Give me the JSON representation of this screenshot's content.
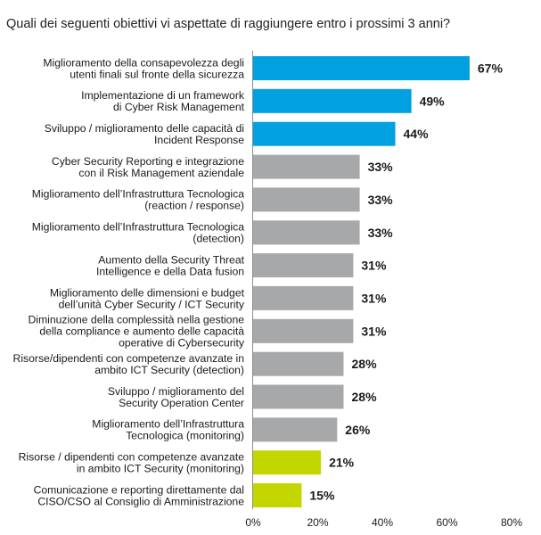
{
  "title": "Quali dei seguenti obiettivi vi aspettate di raggiungere entro i prossimi 3 anni?",
  "colors": {
    "top": "#00a0e1",
    "middle": "#a7a8aa",
    "bottom": "#c4d600"
  },
  "chart_data": {
    "type": "bar",
    "orientation": "horizontal",
    "title": "Quali dei seguenti obiettivi vi aspettate di raggiungere entro i prossimi 3 anni?",
    "xlabel": "",
    "ylabel": "",
    "xlim": [
      0,
      80
    ],
    "grid": false,
    "x_ticks": [
      "0%",
      "20%",
      "40%",
      "60%",
      "80%"
    ],
    "categories": [
      [
        "Miglioramento della consapevolezza degli",
        "utenti finali sul fronte della sicurezza"
      ],
      [
        "Implementazione di un framework",
        "di Cyber Risk Management"
      ],
      [
        "Sviluppo / miglioramento delle capacità di",
        "Incident Response"
      ],
      [
        "Cyber Security Reporting e integrazione",
        "con il Risk Management aziendale"
      ],
      [
        "Miglioramento dell’Infrastruttura Tecnologica",
        "(reaction / response)"
      ],
      [
        "Miglioramento dell’Infrastruttura Tecnologica",
        "(detection)"
      ],
      [
        "Aumento della Security Threat",
        "Intelligence e della Data fusion"
      ],
      [
        "Miglioramento delle dimensioni e budget",
        "dell’unità Cyber Security / ICT Security"
      ],
      [
        "Diminuzione della complessità nella gestione",
        "della compliance e aumento delle capacità",
        "operative di Cybersecurity"
      ],
      [
        "Risorse/dipendenti con competenze avanzate in",
        "ambito ICT Security (detection)"
      ],
      [
        "Sviluppo / miglioramento del",
        "Security Operation Center"
      ],
      [
        "Miglioramento dell’Infrastruttura",
        "Tecnologica (monitoring)"
      ],
      [
        "Risorse / dipendenti con competenze avanzate",
        "in ambito ICT Security (monitoring)"
      ],
      [
        "Comunicazione e reporting direttamente dal",
        "CISO/CSO al Consiglio di Amministrazione"
      ]
    ],
    "values": [
      67,
      49,
      44,
      33,
      33,
      33,
      31,
      31,
      31,
      28,
      28,
      26,
      21,
      15
    ],
    "value_labels": [
      "67%",
      "49%",
      "44%",
      "33%",
      "33%",
      "33%",
      "31%",
      "31%",
      "31%",
      "28%",
      "28%",
      "26%",
      "21%",
      "15%"
    ],
    "bar_colors": [
      "top",
      "top",
      "top",
      "middle",
      "middle",
      "middle",
      "middle",
      "middle",
      "middle",
      "middle",
      "middle",
      "middle",
      "bottom",
      "bottom"
    ]
  }
}
